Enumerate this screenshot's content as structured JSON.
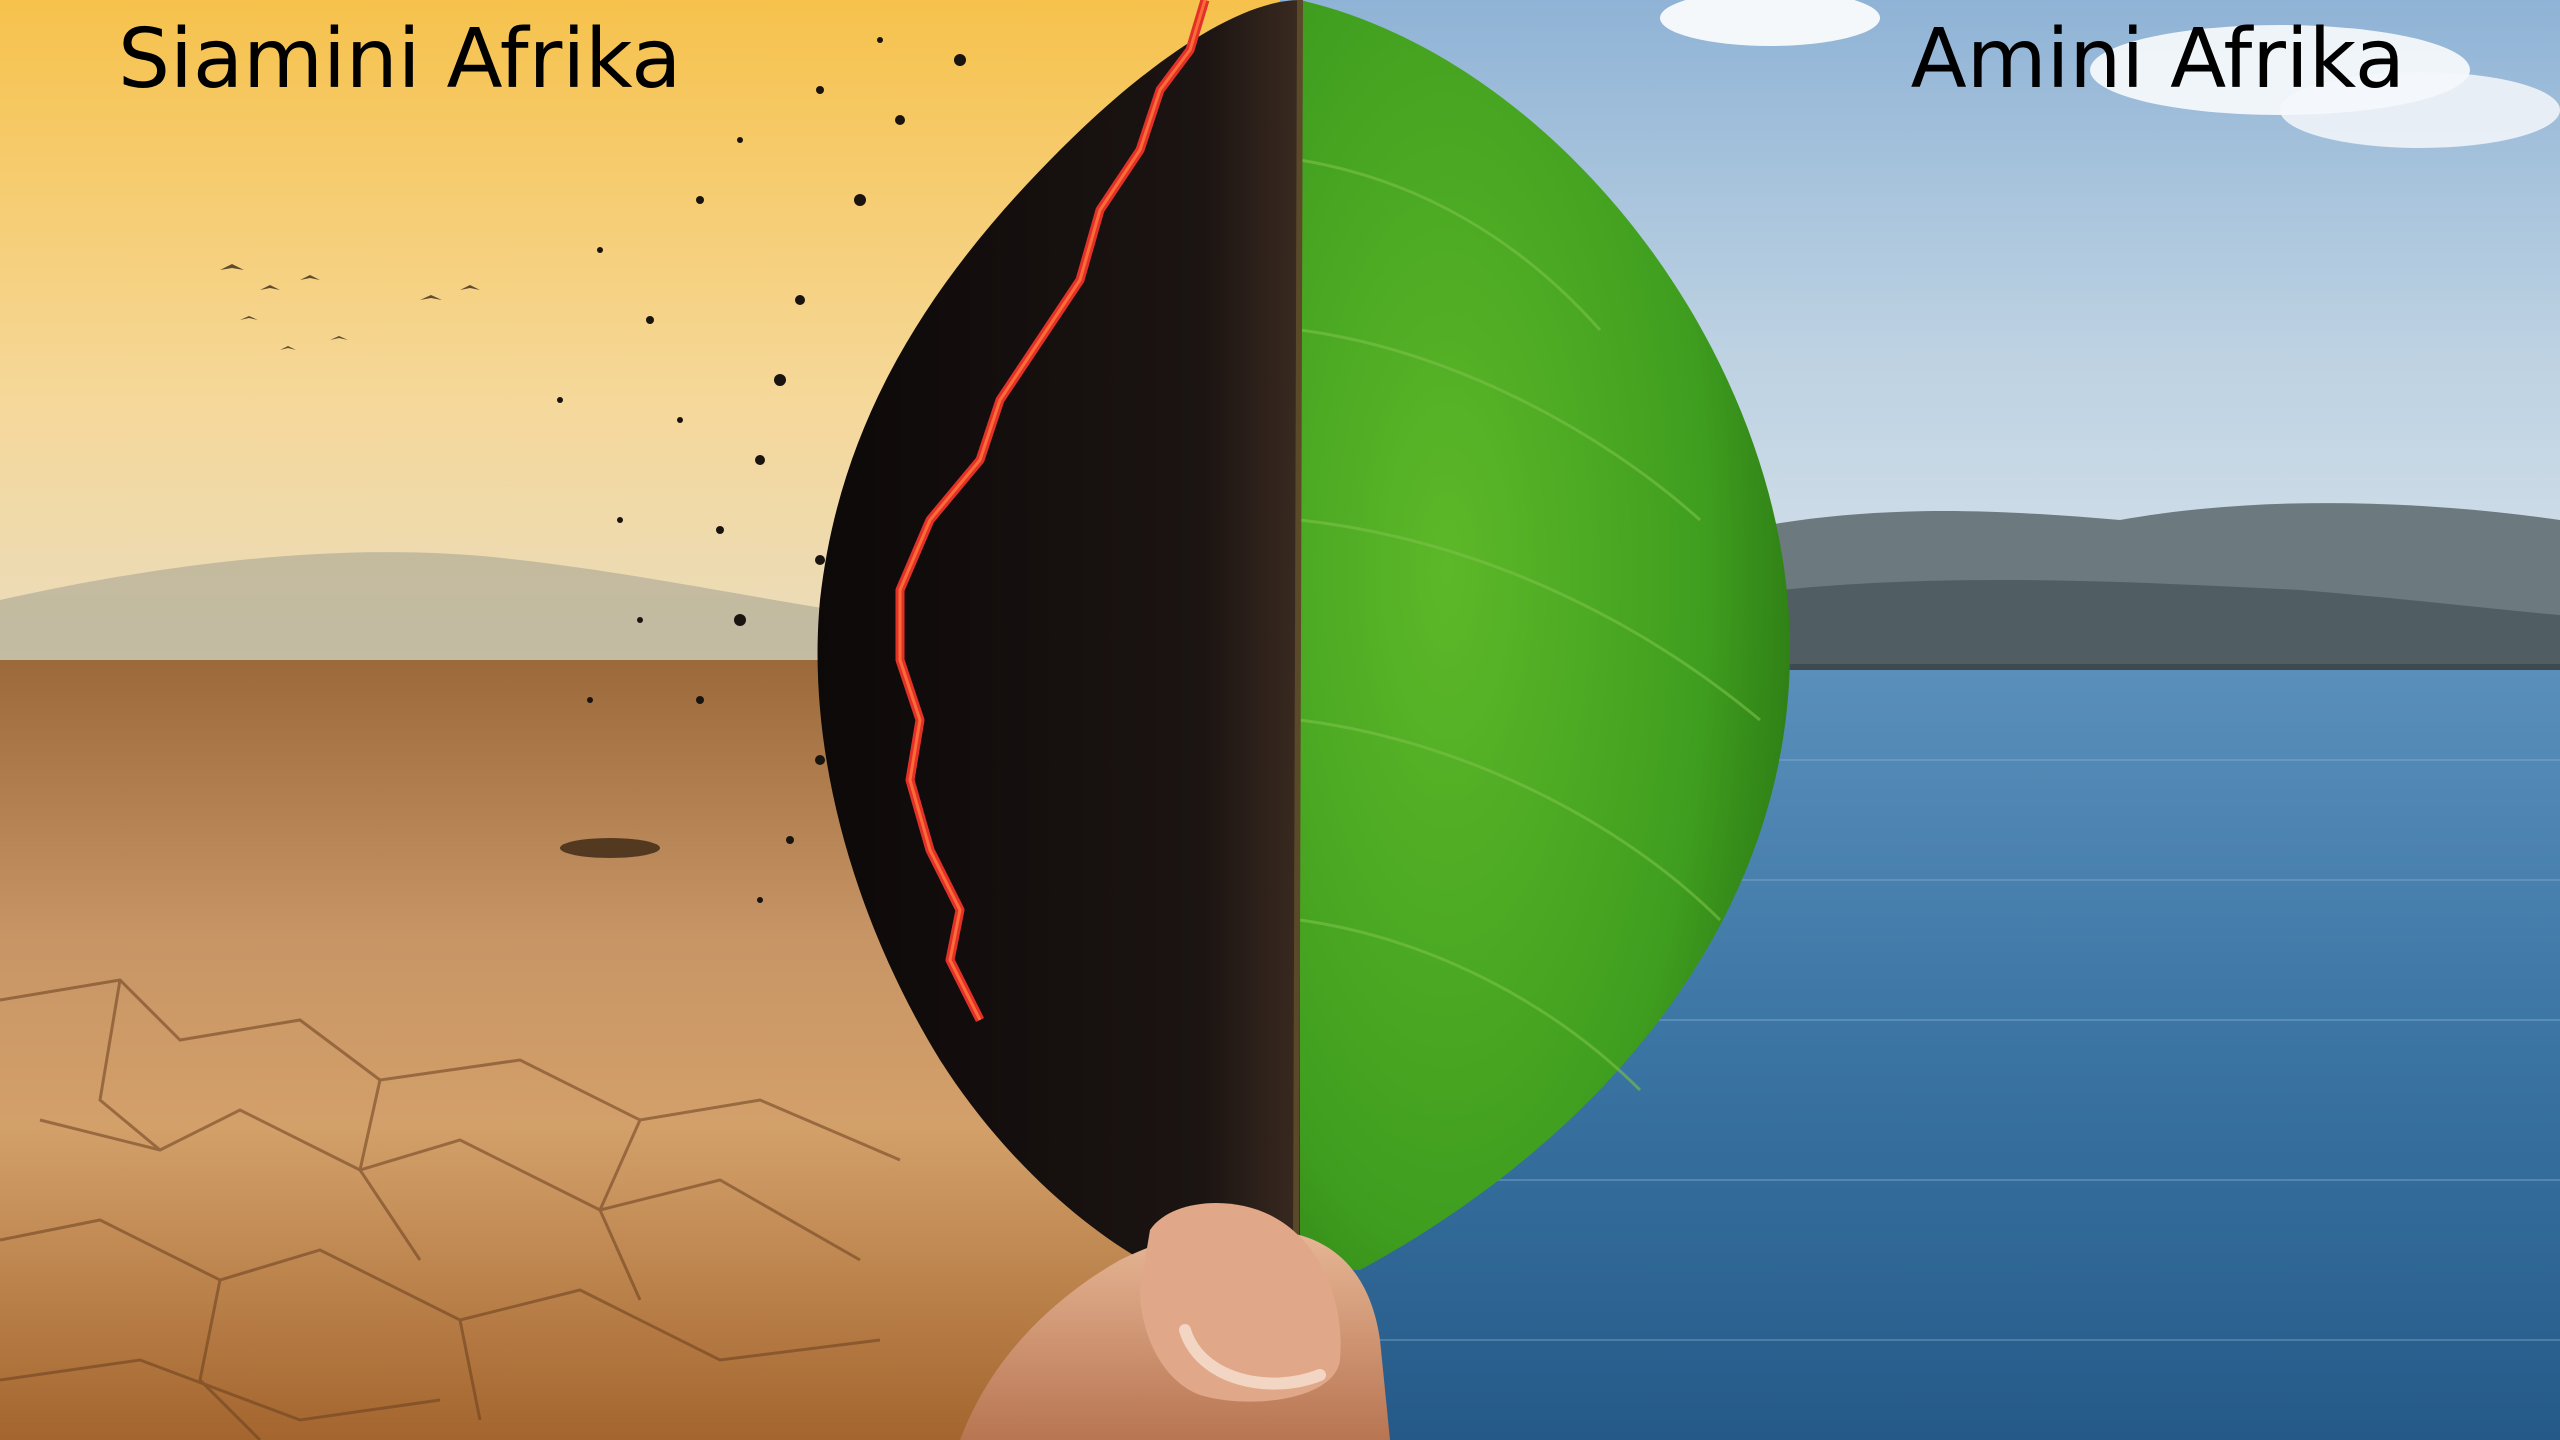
{
  "captions": {
    "left": "Siamini Afrika",
    "right": "Amini Afrika"
  },
  "colors": {
    "sky_left": "#f4c865",
    "ground_left": "#b47a3e",
    "sky_right": "#b9d3e6",
    "sea": "#2f6a9a",
    "leaf_green": "#3f9e1f",
    "leaf_burnt": "#141010",
    "ember": "#e3312a"
  }
}
